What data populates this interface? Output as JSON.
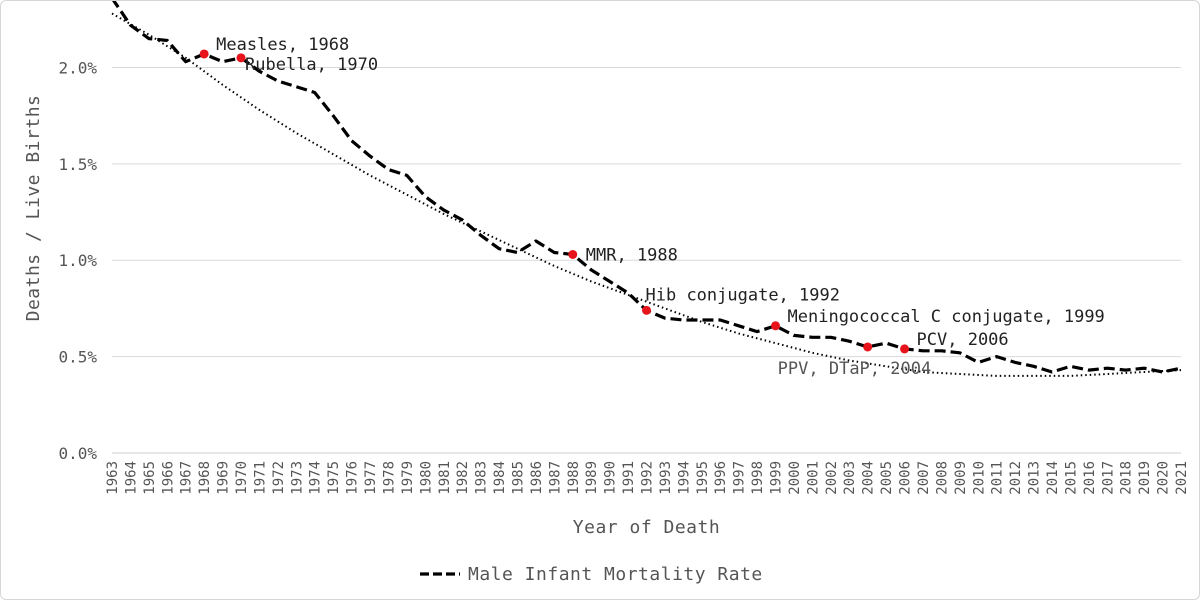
{
  "chart_data": {
    "type": "line",
    "title": "",
    "xlabel": "Year of Death",
    "ylabel": "Deaths / Live Births",
    "ylim": [
      0,
      0.0235
    ],
    "yticks": [
      {
        "value": 0.0,
        "label": "0.0%"
      },
      {
        "value": 0.005,
        "label": "0.5%"
      },
      {
        "value": 0.01,
        "label": "1.0%"
      },
      {
        "value": 0.015,
        "label": "1.5%"
      },
      {
        "value": 0.02,
        "label": "2.0%"
      }
    ],
    "grid": true,
    "legend_position": "bottom",
    "series": [
      {
        "name": "Male Infant Mortality Rate",
        "style": "dashed",
        "color": "#000000",
        "x": [
          1963,
          1964,
          1965,
          1966,
          1967,
          1968,
          1969,
          1970,
          1971,
          1972,
          1973,
          1974,
          1975,
          1976,
          1977,
          1978,
          1979,
          1980,
          1981,
          1982,
          1983,
          1984,
          1985,
          1986,
          1987,
          1988,
          1989,
          1990,
          1991,
          1992,
          1993,
          1994,
          1995,
          1996,
          1997,
          1998,
          1999,
          2000,
          2001,
          2002,
          2003,
          2004,
          2005,
          2006,
          2007,
          2008,
          2009,
          2010,
          2011,
          2012,
          2013,
          2014,
          2015,
          2016,
          2017,
          2018,
          2019,
          2020,
          2021
        ],
        "values": [
          0.0236,
          0.0222,
          0.0215,
          0.0214,
          0.0203,
          0.0207,
          0.0203,
          0.0205,
          0.0198,
          0.0193,
          0.019,
          0.0187,
          0.0175,
          0.0162,
          0.0154,
          0.0147,
          0.0144,
          0.0133,
          0.0126,
          0.0121,
          0.0113,
          0.0106,
          0.0104,
          0.011,
          0.0104,
          0.0103,
          0.0095,
          0.0089,
          0.0083,
          0.0074,
          0.007,
          0.0069,
          0.0069,
          0.0069,
          0.0066,
          0.0063,
          0.0066,
          0.0061,
          0.006,
          0.006,
          0.0058,
          0.0055,
          0.0057,
          0.0054,
          0.0053,
          0.0053,
          0.0052,
          0.0047,
          0.005,
          0.0047,
          0.0045,
          0.0042,
          0.0045,
          0.0043,
          0.0044,
          0.0043,
          0.0044,
          0.0042,
          0.0044
        ]
      },
      {
        "style": "dotted-trendline",
        "color": "#000000",
        "x": [
          1963,
          1965,
          1967,
          1969,
          1971,
          1973,
          1975,
          1977,
          1979,
          1981,
          1983,
          1985,
          1987,
          1989,
          1991,
          1993,
          1995,
          1997,
          1999,
          2001,
          2003,
          2005,
          2007,
          2009,
          2011,
          2013,
          2015,
          2017,
          2019,
          2021
        ],
        "values": [
          0.0228,
          0.0217,
          0.0205,
          0.0191,
          0.0178,
          0.0166,
          0.0155,
          0.0144,
          0.0134,
          0.0124,
          0.0115,
          0.0106,
          0.0097,
          0.0089,
          0.0082,
          0.0075,
          0.0068,
          0.0062,
          0.0057,
          0.0052,
          0.0048,
          0.0045,
          0.0042,
          0.0041,
          0.004,
          0.004,
          0.004,
          0.0041,
          0.0042,
          0.0043
        ]
      }
    ],
    "annotations": [
      {
        "label": "Measles, 1968",
        "x": 1968,
        "y": 0.0207,
        "anchor": "right-above",
        "muted": false
      },
      {
        "label": "Rubella, 1970",
        "x": 1970,
        "y": 0.0205,
        "anchor": "right-below",
        "muted": false
      },
      {
        "label": "MMR, 1988",
        "x": 1988,
        "y": 0.0103,
        "anchor": "right",
        "muted": false
      },
      {
        "label": "Hib conjugate, 1992",
        "x": 1992,
        "y": 0.0074,
        "anchor": "above",
        "muted": false
      },
      {
        "label": "Meningococcal C conjugate, 1999",
        "x": 1999,
        "y": 0.0066,
        "anchor": "right-above",
        "muted": false
      },
      {
        "label": "PPV, DTaP, 2004",
        "x": 2004,
        "y": 0.0055,
        "anchor": "below-left",
        "muted": true
      },
      {
        "label": "PCV, 2006",
        "x": 2006,
        "y": 0.0054,
        "anchor": "right-above",
        "muted": false
      }
    ],
    "marker_color": "#e8141c"
  }
}
